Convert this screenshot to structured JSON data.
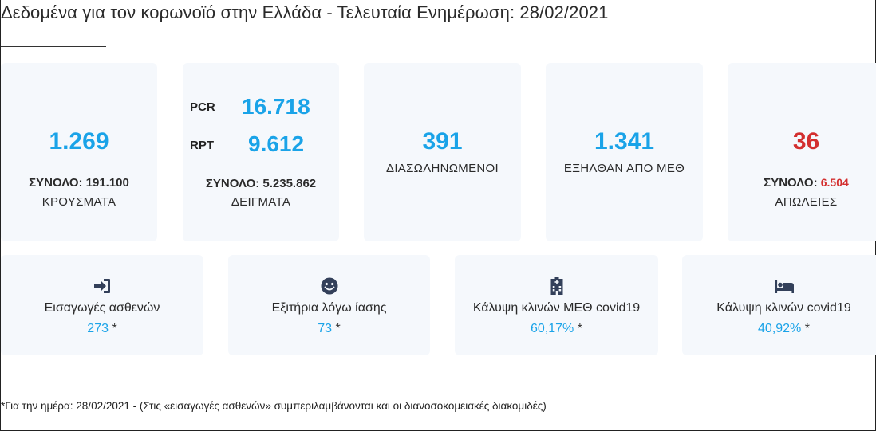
{
  "header": {
    "title": "Δεδομένα για τον κορωνοϊό στην Ελλάδα - Τελευταία Ενημέρωση: 28/02/2021"
  },
  "cases": {
    "value": "1.269",
    "total_label": "ΣΥΝΟΛΟ: 191.100",
    "label": "ΚΡΟΥΣΜΑΤΑ"
  },
  "tests": {
    "pcr_label": "PCR",
    "pcr_value": "16.718",
    "rpt_label": "RPT",
    "rpt_value": "9.612",
    "total_label": "ΣΥΝΟΛΟ: 5.235.862",
    "label": "ΔΕΙΓΜΑΤΑ"
  },
  "intubated": {
    "value": "391",
    "label": "ΔΙΑΣΩΛΗΝΩΜΕΝΟΙ"
  },
  "icu_exits": {
    "value": "1.341",
    "label": "ΕΞΗΛΘΑΝ ΑΠΟ ΜΕΘ"
  },
  "deaths": {
    "value": "36",
    "total_prefix": "ΣΥΝΟΛΟ: ",
    "total_value": "6.504",
    "label": "ΑΠΩΛΕΙΕΣ"
  },
  "stats": [
    {
      "icon": "sign-in-icon",
      "name": "Εισαγωγές ασθενών",
      "value": "273",
      "mark": "*"
    },
    {
      "icon": "smile-icon",
      "name": "Εξιτήρια λόγω ίασης",
      "value": "73",
      "mark": "*"
    },
    {
      "icon": "hospital-icon",
      "name": "Κάλυψη κλινών ΜΕΘ covid19",
      "value": "60,17%",
      "mark": "*"
    },
    {
      "icon": "bed-icon",
      "name": "Κάλυψη κλινών covid19",
      "value": "40,92%",
      "mark": "*"
    }
  ],
  "footnote": "*Για την ημέρα: 28/02/2021 - (Στις «εισαγωγές ασθενών» συμπεριλαμβάνονται και οι διανοσοκομειακές διακομιδές)",
  "colors": {
    "accent": "#1aa3e8",
    "danger": "#d32f2f",
    "card_bg": "#f5f8fc"
  }
}
